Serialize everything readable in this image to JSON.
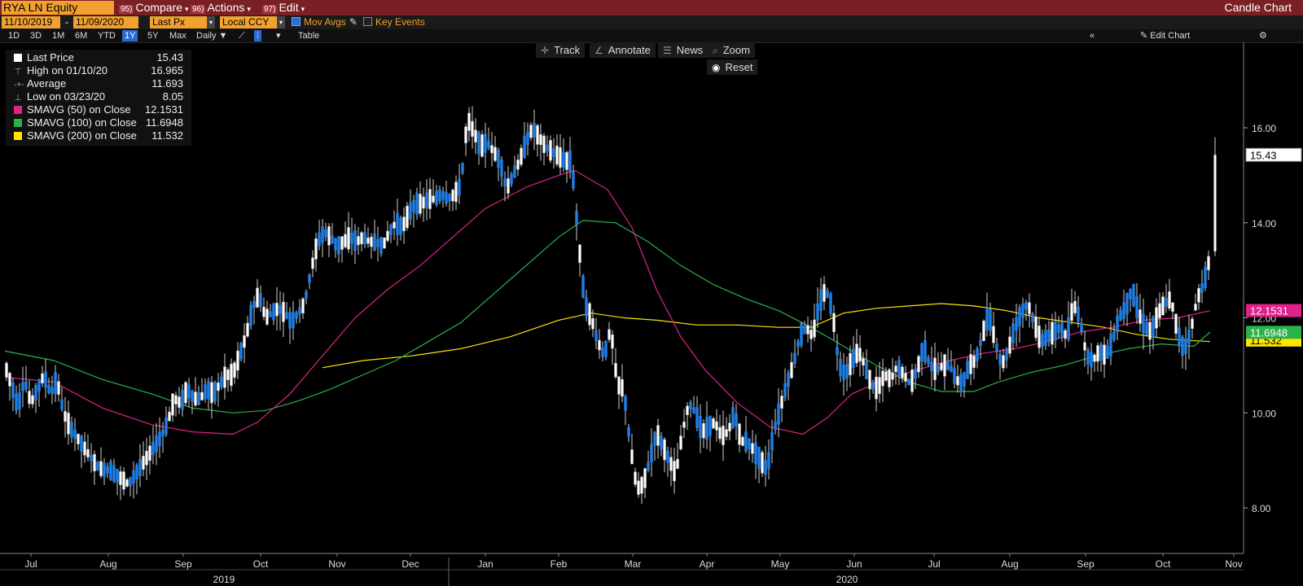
{
  "header": {
    "ticker": "RYA LN Equity",
    "menus": [
      {
        "num": "95)",
        "label": "Compare"
      },
      {
        "num": "96)",
        "label": "Actions"
      },
      {
        "num": "97)",
        "label": "Edit"
      }
    ],
    "chart_type": "Candle Chart"
  },
  "options": {
    "start_date": "11/10/2019",
    "end_date": "11/09/2020",
    "field": "Last Px",
    "currency": "Local CCY",
    "mov_avgs": "Mov Avgs",
    "key_events": "Key Events"
  },
  "ranges": [
    "1D",
    "3D",
    "1M",
    "6M",
    "YTD",
    "1Y",
    "5Y",
    "Max"
  ],
  "selected_range": "1Y",
  "frequency": "Daily",
  "table_label": "Table",
  "edit_chart": "Edit Chart",
  "tools": {
    "track": "Track",
    "annotate": "Annotate",
    "news": "News",
    "zoom": "Zoom",
    "reset": "Reset"
  },
  "legend": [
    {
      "label": "Last Price",
      "value": "15.43",
      "marker": "square-white"
    },
    {
      "label": "High on 01/10/20",
      "value": "16.965",
      "marker": "high-tick"
    },
    {
      "label": "Average",
      "value": "11.693",
      "marker": "average-dash"
    },
    {
      "label": "Low on 03/23/20",
      "value": "8.05",
      "marker": "low-tick"
    },
    {
      "label": "SMAVG (50)  on Close",
      "value": "12.1531",
      "color": "#e0218a"
    },
    {
      "label": "SMAVG (100)  on Close",
      "value": "11.6948",
      "color": "#2bb24a"
    },
    {
      "label": "SMAVG (200)  on Close",
      "value": "11.532",
      "color": "#ffe600"
    }
  ],
  "chart_data": {
    "type": "line",
    "y_ticks": [
      "16.00",
      "14.00",
      "12.00",
      "10.00",
      "8.00"
    ],
    "x_ticks": [
      "Jul",
      "Aug",
      "Sep",
      "Oct",
      "Nov",
      "Dec",
      "Jan",
      "Feb",
      "Mar",
      "Apr",
      "May",
      "Jun",
      "Jul",
      "Aug",
      "Sep",
      "Oct",
      "Nov"
    ],
    "years": [
      "2019",
      "2020"
    ],
    "ylim": [
      7.2,
      17.5
    ],
    "last_price_label": "15.43",
    "ma_labels": [
      "12.1531",
      "11.6948",
      "11.532"
    ],
    "price_series": [
      [
        0,
        11.0
      ],
      [
        8,
        10.6
      ],
      [
        16,
        10.1
      ],
      [
        24,
        10.7
      ],
      [
        32,
        10.2
      ],
      [
        40,
        10.5
      ],
      [
        48,
        10.8
      ],
      [
        56,
        10.4
      ],
      [
        64,
        10.7
      ],
      [
        72,
        10.0
      ],
      [
        80,
        9.7
      ],
      [
        88,
        9.5
      ],
      [
        96,
        9.3
      ],
      [
        104,
        9.1
      ],
      [
        112,
        8.9
      ],
      [
        120,
        8.8
      ],
      [
        128,
        8.8
      ],
      [
        136,
        8.7
      ],
      [
        144,
        8.6
      ],
      [
        152,
        8.5
      ],
      [
        160,
        8.7
      ],
      [
        168,
        8.9
      ],
      [
        176,
        9.1
      ],
      [
        184,
        9.3
      ],
      [
        192,
        9.5
      ],
      [
        200,
        9.8
      ],
      [
        208,
        10.3
      ],
      [
        216,
        10.2
      ],
      [
        224,
        10.5
      ],
      [
        232,
        10.3
      ],
      [
        240,
        10.3
      ],
      [
        248,
        10.5
      ],
      [
        256,
        10.4
      ],
      [
        264,
        10.6
      ],
      [
        272,
        10.8
      ],
      [
        280,
        10.8
      ],
      [
        288,
        11.2
      ],
      [
        296,
        11.6
      ],
      [
        304,
        12.2
      ],
      [
        312,
        12.5
      ],
      [
        320,
        12.0
      ],
      [
        328,
        12.1
      ],
      [
        336,
        12.2
      ],
      [
        344,
        12.1
      ],
      [
        352,
        11.9
      ],
      [
        360,
        12.1
      ],
      [
        368,
        12.3
      ],
      [
        376,
        13.0
      ],
      [
        384,
        13.6
      ],
      [
        392,
        13.8
      ],
      [
        400,
        13.7
      ],
      [
        408,
        13.5
      ],
      [
        416,
        13.6
      ],
      [
        424,
        13.7
      ],
      [
        432,
        13.6
      ],
      [
        440,
        13.7
      ],
      [
        448,
        13.6
      ],
      [
        456,
        13.6
      ],
      [
        464,
        13.5
      ],
      [
        472,
        13.8
      ],
      [
        480,
        14.0
      ],
      [
        488,
        13.9
      ],
      [
        496,
        14.2
      ],
      [
        504,
        14.4
      ],
      [
        512,
        14.4
      ],
      [
        520,
        14.5
      ],
      [
        528,
        14.5
      ],
      [
        536,
        14.6
      ],
      [
        544,
        14.5
      ],
      [
        552,
        14.6
      ],
      [
        560,
        14.8
      ],
      [
        568,
        16.2
      ],
      [
        576,
        15.9
      ],
      [
        584,
        15.6
      ],
      [
        592,
        15.7
      ],
      [
        600,
        15.5
      ],
      [
        608,
        15.3
      ],
      [
        616,
        14.7
      ],
      [
        624,
        15.0
      ],
      [
        632,
        15.3
      ],
      [
        640,
        15.7
      ],
      [
        648,
        16.0
      ],
      [
        656,
        15.8
      ],
      [
        664,
        15.6
      ],
      [
        672,
        15.5
      ],
      [
        680,
        15.4
      ],
      [
        688,
        15.3
      ],
      [
        696,
        15.3
      ],
      [
        704,
        13.7
      ],
      [
        712,
        12.3
      ],
      [
        720,
        12.0
      ],
      [
        728,
        11.5
      ],
      [
        736,
        11.2
      ],
      [
        744,
        11.8
      ],
      [
        752,
        10.6
      ],
      [
        760,
        10.5
      ],
      [
        768,
        9.3
      ],
      [
        776,
        8.4
      ],
      [
        784,
        8.5
      ],
      [
        792,
        9.0
      ],
      [
        800,
        9.6
      ],
      [
        808,
        9.3
      ],
      [
        816,
        9.0
      ],
      [
        824,
        8.7
      ],
      [
        832,
        9.6
      ],
      [
        840,
        10.2
      ],
      [
        848,
        10.0
      ],
      [
        856,
        9.6
      ],
      [
        864,
        9.7
      ],
      [
        872,
        9.8
      ],
      [
        880,
        9.5
      ],
      [
        888,
        9.6
      ],
      [
        896,
        10.0
      ],
      [
        904,
        9.4
      ],
      [
        912,
        9.4
      ],
      [
        920,
        9.2
      ],
      [
        928,
        9.0
      ],
      [
        936,
        8.8
      ],
      [
        944,
        9.6
      ],
      [
        952,
        10.1
      ],
      [
        960,
        10.6
      ],
      [
        968,
        11.0
      ],
      [
        976,
        11.6
      ],
      [
        984,
        11.8
      ],
      [
        992,
        11.6
      ],
      [
        1000,
        12.3
      ],
      [
        1008,
        12.6
      ],
      [
        1016,
        12.2
      ],
      [
        1024,
        11.0
      ],
      [
        1032,
        10.8
      ],
      [
        1040,
        11.1
      ],
      [
        1048,
        11.3
      ],
      [
        1056,
        11.0
      ],
      [
        1064,
        10.6
      ],
      [
        1072,
        10.5
      ],
      [
        1080,
        10.8
      ],
      [
        1088,
        10.7
      ],
      [
        1096,
        11.0
      ],
      [
        1104,
        10.8
      ],
      [
        1112,
        10.6
      ],
      [
        1120,
        10.9
      ],
      [
        1128,
        11.4
      ],
      [
        1136,
        11.0
      ],
      [
        1144,
        10.9
      ],
      [
        1152,
        11.0
      ],
      [
        1160,
        11.0
      ],
      [
        1168,
        10.7
      ],
      [
        1176,
        10.6
      ],
      [
        1184,
        11.0
      ],
      [
        1192,
        11.1
      ],
      [
        1200,
        11.6
      ],
      [
        1208,
        12.1
      ],
      [
        1216,
        11.5
      ],
      [
        1224,
        11.0
      ],
      [
        1232,
        11.3
      ],
      [
        1240,
        11.8
      ],
      [
        1248,
        12.1
      ],
      [
        1256,
        12.3
      ],
      [
        1264,
        11.9
      ],
      [
        1272,
        11.5
      ],
      [
        1280,
        11.6
      ],
      [
        1288,
        11.7
      ],
      [
        1296,
        11.8
      ],
      [
        1304,
        11.6
      ],
      [
        1312,
        12.3
      ],
      [
        1320,
        12.0
      ],
      [
        1328,
        11.2
      ],
      [
        1336,
        11.1
      ],
      [
        1344,
        11.3
      ],
      [
        1352,
        11.2
      ],
      [
        1360,
        11.5
      ],
      [
        1368,
        12.0
      ],
      [
        1376,
        12.2
      ],
      [
        1384,
        12.6
      ],
      [
        1392,
        12.1
      ],
      [
        1400,
        11.8
      ],
      [
        1408,
        11.7
      ],
      [
        1416,
        12.1
      ],
      [
        1424,
        12.3
      ],
      [
        1432,
        12.4
      ],
      [
        1440,
        11.7
      ],
      [
        1448,
        11.3
      ],
      [
        1456,
        11.7
      ],
      [
        1464,
        12.4
      ],
      [
        1472,
        12.7
      ],
      [
        1480,
        13.3
      ]
    ],
    "last_candle": {
      "open": 13.4,
      "high": 15.8,
      "low": 13.3,
      "close": 15.43
    },
    "ma50": [
      [
        0,
        10.75
      ],
      [
        60,
        10.65
      ],
      [
        120,
        10.1
      ],
      [
        180,
        9.75
      ],
      [
        230,
        9.6
      ],
      [
        280,
        9.55
      ],
      [
        310,
        9.8
      ],
      [
        350,
        10.4
      ],
      [
        390,
        11.2
      ],
      [
        430,
        12.0
      ],
      [
        470,
        12.6
      ],
      [
        510,
        13.1
      ],
      [
        550,
        13.7
      ],
      [
        590,
        14.3
      ],
      [
        640,
        14.75
      ],
      [
        680,
        15.0
      ],
      [
        700,
        15.1
      ],
      [
        740,
        14.7
      ],
      [
        770,
        13.9
      ],
      [
        800,
        12.6
      ],
      [
        830,
        11.6
      ],
      [
        860,
        10.9
      ],
      [
        900,
        10.2
      ],
      [
        940,
        9.7
      ],
      [
        980,
        9.55
      ],
      [
        1010,
        9.9
      ],
      [
        1040,
        10.4
      ],
      [
        1080,
        10.7
      ],
      [
        1120,
        10.9
      ],
      [
        1160,
        11.1
      ],
      [
        1200,
        11.25
      ],
      [
        1240,
        11.35
      ],
      [
        1280,
        11.5
      ],
      [
        1320,
        11.7
      ],
      [
        1360,
        11.8
      ],
      [
        1400,
        11.95
      ],
      [
        1440,
        12.0
      ],
      [
        1480,
        12.15
      ]
    ],
    "ma100": [
      [
        0,
        11.3
      ],
      [
        60,
        11.1
      ],
      [
        120,
        10.7
      ],
      [
        180,
        10.4
      ],
      [
        230,
        10.1
      ],
      [
        280,
        10.0
      ],
      [
        320,
        10.05
      ],
      [
        360,
        10.25
      ],
      [
        400,
        10.5
      ],
      [
        440,
        10.8
      ],
      [
        480,
        11.1
      ],
      [
        520,
        11.5
      ],
      [
        560,
        11.9
      ],
      [
        600,
        12.5
      ],
      [
        640,
        13.1
      ],
      [
        680,
        13.7
      ],
      [
        710,
        14.05
      ],
      [
        750,
        14.0
      ],
      [
        790,
        13.6
      ],
      [
        830,
        13.1
      ],
      [
        870,
        12.7
      ],
      [
        910,
        12.4
      ],
      [
        950,
        12.15
      ],
      [
        990,
        11.8
      ],
      [
        1030,
        11.4
      ],
      [
        1070,
        11.0
      ],
      [
        1110,
        10.65
      ],
      [
        1150,
        10.45
      ],
      [
        1190,
        10.45
      ],
      [
        1220,
        10.65
      ],
      [
        1260,
        10.85
      ],
      [
        1300,
        11.0
      ],
      [
        1340,
        11.2
      ],
      [
        1380,
        11.35
      ],
      [
        1420,
        11.45
      ],
      [
        1460,
        11.4
      ],
      [
        1480,
        11.7
      ]
    ],
    "ma200": [
      [
        390,
        10.95
      ],
      [
        440,
        11.1
      ],
      [
        500,
        11.2
      ],
      [
        560,
        11.35
      ],
      [
        620,
        11.6
      ],
      [
        680,
        11.95
      ],
      [
        720,
        12.1
      ],
      [
        760,
        12.0
      ],
      [
        800,
        11.95
      ],
      [
        850,
        11.85
      ],
      [
        900,
        11.85
      ],
      [
        950,
        11.8
      ],
      [
        990,
        11.8
      ],
      [
        1030,
        12.1
      ],
      [
        1070,
        12.2
      ],
      [
        1110,
        12.25
      ],
      [
        1150,
        12.3
      ],
      [
        1190,
        12.25
      ],
      [
        1230,
        12.15
      ],
      [
        1270,
        12.0
      ],
      [
        1310,
        11.9
      ],
      [
        1350,
        11.8
      ],
      [
        1390,
        11.65
      ],
      [
        1430,
        11.55
      ],
      [
        1480,
        11.5
      ]
    ]
  }
}
